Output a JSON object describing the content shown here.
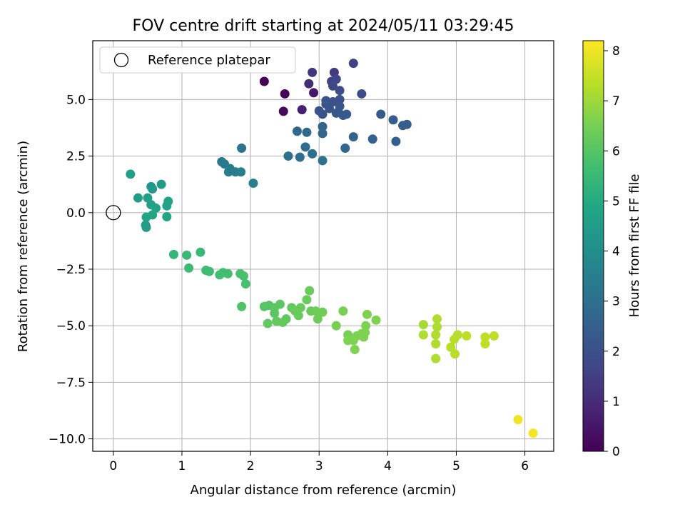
{
  "chart_data": {
    "type": "scatter",
    "title": "FOV centre drift starting at 2024/05/11 03:29:45",
    "xlabel": "Angular distance from reference (arcmin)",
    "ylabel": "Rotation from reference (arcmin)",
    "xlim": [
      -0.3,
      6.42
    ],
    "ylim": [
      -10.55,
      7.6
    ],
    "xticks": [
      0,
      1,
      2,
      3,
      4,
      5,
      6
    ],
    "xtick_labels": [
      "0",
      "1",
      "2",
      "3",
      "4",
      "5",
      "6"
    ],
    "yticks": [
      -10.0,
      -7.5,
      -5.0,
      -2.5,
      0.0,
      2.5,
      5.0
    ],
    "ytick_labels": [
      "−10.0",
      "−7.5",
      "−5.0",
      "−2.5",
      "0.0",
      "2.5",
      "5.0"
    ],
    "grid": true,
    "legend": {
      "placement": "upper-left",
      "entries": [
        "Reference platepar"
      ]
    },
    "reference_point": {
      "x": 0.0,
      "y": 0.0
    },
    "colorbar": {
      "label": "Hours from first FF file",
      "colormap": "viridis",
      "range": [
        0,
        8.2
      ],
      "ticks": [
        0,
        1,
        2,
        3,
        4,
        5,
        6,
        7,
        8
      ],
      "tick_labels": [
        "0",
        "1",
        "2",
        "3",
        "4",
        "5",
        "6",
        "7",
        "8"
      ],
      "stops": [
        "#440154",
        "#482475",
        "#414487",
        "#355f8d",
        "#2a788e",
        "#21918c",
        "#22a884",
        "#44bf70",
        "#7ad151",
        "#bddf26",
        "#fde725"
      ]
    },
    "points": [
      {
        "x": 2.2,
        "y": 5.8,
        "h": 0.05
      },
      {
        "x": 2.5,
        "y": 5.25,
        "h": 0.1
      },
      {
        "x": 2.48,
        "y": 4.48,
        "h": 0.2
      },
      {
        "x": 2.92,
        "y": 5.3,
        "h": 0.5
      },
      {
        "x": 2.75,
        "y": 4.55,
        "h": 0.7
      },
      {
        "x": 2.85,
        "y": 5.7,
        "h": 1.0
      },
      {
        "x": 2.9,
        "y": 6.2,
        "h": 1.3
      },
      {
        "x": 3.22,
        "y": 6.2,
        "h": 1.4
      },
      {
        "x": 3.5,
        "y": 6.6,
        "h": 1.6
      },
      {
        "x": 3.18,
        "y": 5.8,
        "h": 1.6
      },
      {
        "x": 3.25,
        "y": 5.9,
        "h": 1.7
      },
      {
        "x": 3.2,
        "y": 5.6,
        "h": 1.8
      },
      {
        "x": 3.3,
        "y": 5.4,
        "h": 1.9
      },
      {
        "x": 3.62,
        "y": 5.25,
        "h": 1.9
      },
      {
        "x": 3.1,
        "y": 4.8,
        "h": 1.9
      },
      {
        "x": 3.2,
        "y": 4.9,
        "h": 2.0
      },
      {
        "x": 3.3,
        "y": 5.0,
        "h": 2.0
      },
      {
        "x": 3.0,
        "y": 4.5,
        "h": 2.1
      },
      {
        "x": 3.05,
        "y": 4.35,
        "h": 2.1
      },
      {
        "x": 3.15,
        "y": 4.6,
        "h": 2.1
      },
      {
        "x": 3.25,
        "y": 4.4,
        "h": 2.2
      },
      {
        "x": 3.3,
        "y": 4.7,
        "h": 2.2
      },
      {
        "x": 3.35,
        "y": 4.3,
        "h": 2.2
      },
      {
        "x": 3.4,
        "y": 4.35,
        "h": 2.3
      },
      {
        "x": 3.1,
        "y": 4.95,
        "h": 2.2
      },
      {
        "x": 3.28,
        "y": 4.45,
        "h": 2.2
      },
      {
        "x": 3.9,
        "y": 4.35,
        "h": 2.3
      },
      {
        "x": 4.08,
        "y": 4.1,
        "h": 2.4
      },
      {
        "x": 4.22,
        "y": 3.85,
        "h": 2.4
      },
      {
        "x": 4.28,
        "y": 3.9,
        "h": 2.4
      },
      {
        "x": 4.12,
        "y": 3.15,
        "h": 2.5
      },
      {
        "x": 3.78,
        "y": 3.25,
        "h": 2.6
      },
      {
        "x": 3.5,
        "y": 3.35,
        "h": 2.6
      },
      {
        "x": 3.38,
        "y": 2.85,
        "h": 2.7
      },
      {
        "x": 3.05,
        "y": 3.8,
        "h": 2.6
      },
      {
        "x": 3.05,
        "y": 3.5,
        "h": 2.7
      },
      {
        "x": 2.68,
        "y": 3.6,
        "h": 2.8
      },
      {
        "x": 2.82,
        "y": 3.55,
        "h": 2.8
      },
      {
        "x": 2.8,
        "y": 2.9,
        "h": 2.9
      },
      {
        "x": 2.55,
        "y": 2.5,
        "h": 3.0
      },
      {
        "x": 2.72,
        "y": 2.45,
        "h": 3.0
      },
      {
        "x": 2.9,
        "y": 2.6,
        "h": 3.0
      },
      {
        "x": 3.05,
        "y": 2.3,
        "h": 3.1
      },
      {
        "x": 1.87,
        "y": 2.85,
        "h": 3.1
      },
      {
        "x": 1.58,
        "y": 2.25,
        "h": 3.3
      },
      {
        "x": 1.62,
        "y": 2.15,
        "h": 3.3
      },
      {
        "x": 1.7,
        "y": 1.95,
        "h": 3.4
      },
      {
        "x": 1.68,
        "y": 1.8,
        "h": 3.4
      },
      {
        "x": 1.78,
        "y": 1.8,
        "h": 3.4
      },
      {
        "x": 1.86,
        "y": 1.8,
        "h": 3.5
      },
      {
        "x": 2.04,
        "y": 1.3,
        "h": 3.5
      },
      {
        "x": 0.25,
        "y": 1.7,
        "h": 4.6
      },
      {
        "x": 0.55,
        "y": 1.15,
        "h": 4.3
      },
      {
        "x": 0.57,
        "y": 1.05,
        "h": 4.4
      },
      {
        "x": 0.7,
        "y": 1.25,
        "h": 4.4
      },
      {
        "x": 0.36,
        "y": 0.65,
        "h": 4.5
      },
      {
        "x": 0.5,
        "y": 0.65,
        "h": 4.6
      },
      {
        "x": 0.55,
        "y": 0.35,
        "h": 4.6
      },
      {
        "x": 0.62,
        "y": 0.2,
        "h": 4.7
      },
      {
        "x": 0.8,
        "y": 0.5,
        "h": 4.7
      },
      {
        "x": 0.78,
        "y": 0.3,
        "h": 4.7
      },
      {
        "x": 0.57,
        "y": -0.1,
        "h": 4.8
      },
      {
        "x": 0.48,
        "y": -0.2,
        "h": 4.8
      },
      {
        "x": 0.78,
        "y": -0.18,
        "h": 4.8
      },
      {
        "x": 0.47,
        "y": -0.55,
        "h": 4.5
      },
      {
        "x": 0.48,
        "y": -0.65,
        "h": 4.5
      },
      {
        "x": 0.88,
        "y": -1.85,
        "h": 5.4
      },
      {
        "x": 1.07,
        "y": -1.88,
        "h": 5.5
      },
      {
        "x": 1.27,
        "y": -1.75,
        "h": 5.5
      },
      {
        "x": 1.1,
        "y": -2.45,
        "h": 5.6
      },
      {
        "x": 1.35,
        "y": -2.55,
        "h": 5.6
      },
      {
        "x": 1.4,
        "y": -2.6,
        "h": 5.6
      },
      {
        "x": 1.55,
        "y": -2.75,
        "h": 5.7
      },
      {
        "x": 1.6,
        "y": -2.65,
        "h": 5.7
      },
      {
        "x": 1.67,
        "y": -2.7,
        "h": 5.7
      },
      {
        "x": 1.85,
        "y": -2.7,
        "h": 5.8
      },
      {
        "x": 1.9,
        "y": -2.8,
        "h": 5.8
      },
      {
        "x": 1.93,
        "y": -3.15,
        "h": 5.8
      },
      {
        "x": 1.87,
        "y": -4.15,
        "h": 5.9
      },
      {
        "x": 2.2,
        "y": -4.15,
        "h": 6.0
      },
      {
        "x": 2.27,
        "y": -4.1,
        "h": 6.0
      },
      {
        "x": 2.35,
        "y": -4.2,
        "h": 6.1
      },
      {
        "x": 2.43,
        "y": -4.05,
        "h": 6.1
      },
      {
        "x": 2.35,
        "y": -4.45,
        "h": 6.1
      },
      {
        "x": 2.25,
        "y": -4.9,
        "h": 6.2
      },
      {
        "x": 2.38,
        "y": -4.8,
        "h": 6.2
      },
      {
        "x": 2.47,
        "y": -4.85,
        "h": 6.2
      },
      {
        "x": 2.52,
        "y": -4.7,
        "h": 6.2
      },
      {
        "x": 2.6,
        "y": -4.2,
        "h": 6.2
      },
      {
        "x": 2.65,
        "y": -4.35,
        "h": 6.3
      },
      {
        "x": 2.7,
        "y": -4.55,
        "h": 6.3
      },
      {
        "x": 2.73,
        "y": -4.2,
        "h": 6.3
      },
      {
        "x": 2.82,
        "y": -3.85,
        "h": 6.3
      },
      {
        "x": 2.86,
        "y": -3.45,
        "h": 6.3
      },
      {
        "x": 2.88,
        "y": -4.35,
        "h": 6.3
      },
      {
        "x": 2.95,
        "y": -4.35,
        "h": 6.4
      },
      {
        "x": 2.98,
        "y": -4.7,
        "h": 6.4
      },
      {
        "x": 3.05,
        "y": -4.4,
        "h": 6.4
      },
      {
        "x": 3.25,
        "y": -5.0,
        "h": 6.5
      },
      {
        "x": 3.35,
        "y": -4.35,
        "h": 6.5
      },
      {
        "x": 3.42,
        "y": -5.4,
        "h": 6.5
      },
      {
        "x": 3.42,
        "y": -5.65,
        "h": 6.6
      },
      {
        "x": 3.5,
        "y": -5.65,
        "h": 6.6
      },
      {
        "x": 3.52,
        "y": -6.05,
        "h": 6.6
      },
      {
        "x": 3.55,
        "y": -5.45,
        "h": 6.6
      },
      {
        "x": 3.62,
        "y": -5.35,
        "h": 6.6
      },
      {
        "x": 3.65,
        "y": -5.5,
        "h": 6.6
      },
      {
        "x": 3.67,
        "y": -5.3,
        "h": 6.6
      },
      {
        "x": 3.68,
        "y": -5.0,
        "h": 6.6
      },
      {
        "x": 3.7,
        "y": -4.5,
        "h": 6.6
      },
      {
        "x": 3.83,
        "y": -4.75,
        "h": 6.6
      },
      {
        "x": 4.52,
        "y": -4.95,
        "h": 7.1
      },
      {
        "x": 4.52,
        "y": -5.4,
        "h": 7.2
      },
      {
        "x": 4.7,
        "y": -5.4,
        "h": 7.2
      },
      {
        "x": 4.7,
        "y": -5.8,
        "h": 7.2
      },
      {
        "x": 4.72,
        "y": -5.05,
        "h": 7.2
      },
      {
        "x": 4.72,
        "y": -4.7,
        "h": 7.2
      },
      {
        "x": 4.7,
        "y": -6.45,
        "h": 7.2
      },
      {
        "x": 4.92,
        "y": -5.95,
        "h": 7.3
      },
      {
        "x": 4.97,
        "y": -5.6,
        "h": 7.3
      },
      {
        "x": 4.98,
        "y": -6.25,
        "h": 7.3
      },
      {
        "x": 5.02,
        "y": -5.4,
        "h": 7.3
      },
      {
        "x": 5.15,
        "y": -5.45,
        "h": 7.4
      },
      {
        "x": 5.42,
        "y": -5.5,
        "h": 7.4
      },
      {
        "x": 5.42,
        "y": -5.8,
        "h": 7.4
      },
      {
        "x": 5.55,
        "y": -5.45,
        "h": 7.4
      },
      {
        "x": 5.9,
        "y": -9.15,
        "h": 8.0
      },
      {
        "x": 6.12,
        "y": -9.75,
        "h": 8.1
      }
    ]
  }
}
